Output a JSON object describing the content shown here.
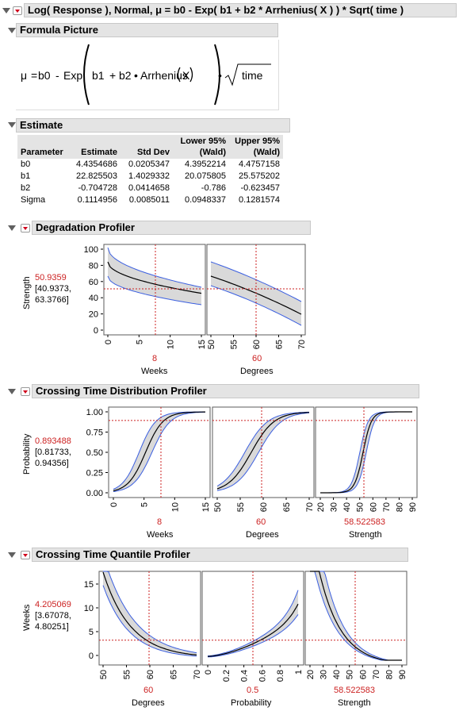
{
  "title": "Log( Response ), Normal, μ = b0 - Exp( b1 + b2 * Arrhenius( X ) ) * Sqrt( time )",
  "formula": {
    "header": "Formula Picture",
    "mu": "μ",
    "eq": "=",
    "b0": "b0",
    "minus": "-",
    "exp": "Exp",
    "b1": "b1",
    "plus": "+",
    "b2": "b2",
    "dot": "•",
    "arr": "Arrhenius",
    "x": "X",
    "time": "time"
  },
  "estimate": {
    "header": "Estimate",
    "columns": [
      "Parameter",
      "Estimate",
      "Std Dev",
      "Lower 95% (Wald)",
      "Upper 95% (Wald)"
    ],
    "col_lower_l1": "Lower 95%",
    "col_lower_l2": "(Wald)",
    "col_upper_l1": "Upper 95%",
    "col_upper_l2": "(Wald)",
    "rows": [
      [
        "b0",
        "4.4354686",
        "0.0205347",
        "4.3952214",
        "4.4757158"
      ],
      [
        "b1",
        "22.825503",
        "1.4029332",
        "20.075805",
        "25.575202"
      ],
      [
        "b2",
        "-0.704728",
        "0.0414658",
        "-0.786",
        "-0.623457"
      ],
      [
        "Sigma",
        "0.1114956",
        "0.0085011",
        "0.0948337",
        "0.1281574"
      ]
    ]
  },
  "degradation": {
    "header": "Degradation Profiler",
    "ylabel": "Strength",
    "value": "50.9359",
    "ci1": "[40.9373,",
    "ci2": "63.3766]",
    "yticks": [
      "100",
      "80",
      "60",
      "40",
      "20",
      "0"
    ],
    "weeks_ticks": [
      "0",
      "5",
      "10",
      "15"
    ],
    "degrees_ticks": [
      "50",
      "55",
      "60",
      "65",
      "70"
    ],
    "weeks_value": "8",
    "degrees_value": "60",
    "weeks_label": "Weeks",
    "degrees_label": "Degrees"
  },
  "crossing_dist": {
    "header": "Crossing Time Distribution Profiler",
    "ylabel": "Probability",
    "value": "0.893488",
    "ci1": "[0.81733,",
    "ci2": "0.94356]",
    "yticks": [
      "1.00",
      "0.75",
      "0.50",
      "0.25",
      "0.00"
    ],
    "weeks_ticks": [
      "0",
      "5",
      "10",
      "15"
    ],
    "degrees_ticks": [
      "50",
      "55",
      "60",
      "65",
      "70"
    ],
    "strength_ticks": [
      "20",
      "30",
      "40",
      "50",
      "60",
      "70",
      "80",
      "90"
    ],
    "weeks_value": "8",
    "degrees_value": "60",
    "strength_value": "58.522583",
    "weeks_label": "Weeks",
    "degrees_label": "Degrees",
    "strength_label": "Strength"
  },
  "crossing_quant": {
    "header": "Crossing Time Quantile Profiler",
    "ylabel": "Weeks",
    "value": "4.205069",
    "ci1": "[3.67078,",
    "ci2": "4.80251]",
    "yticks": [
      "15",
      "10",
      "5",
      "0"
    ],
    "degrees_ticks": [
      "50",
      "55",
      "60",
      "65",
      "70"
    ],
    "prob_ticks": [
      "0",
      "0.2",
      "0.4",
      "0.6",
      "0.8",
      "1"
    ],
    "strength_ticks": [
      "20",
      "30",
      "40",
      "50",
      "60",
      "70",
      "80",
      "90"
    ],
    "degrees_value": "60",
    "prob_value": "0.5",
    "strength_value": "58.522583",
    "degrees_label": "Degrees",
    "prob_label": "Probability",
    "strength_label": "Strength"
  },
  "colors": {
    "band": "#d9d9d9",
    "band_edge": "#3b5fe0",
    "curve": "#000000",
    "crosshair": "#cc2222"
  }
}
